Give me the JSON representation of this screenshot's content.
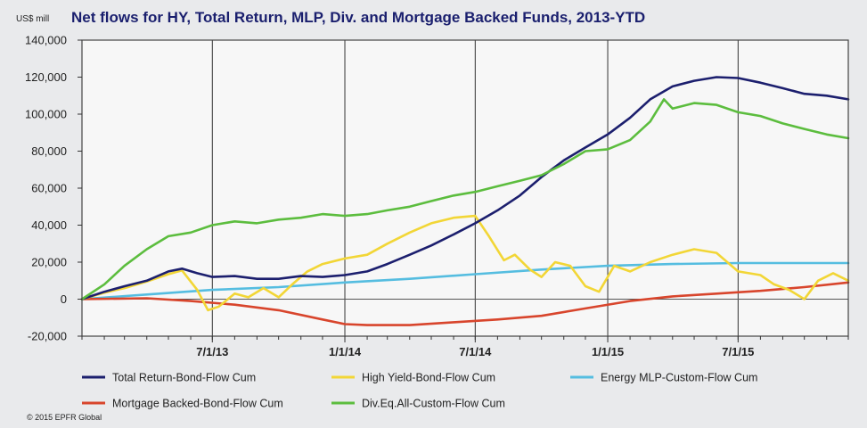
{
  "colors": {
    "background": "#e9eaec",
    "plot_bg": "#f7f7f7",
    "frame": "#444444",
    "title": "#1a1f6e"
  },
  "chart_data": {
    "type": "line",
    "title": "Net flows for HY, Total Return, MLP, Div. and Mortgage Backed Funds, 2013-YTD",
    "unit_label": "US$ mill",
    "copyright": "© 2015 EPFR Global",
    "x_range": [
      "2013-01-01",
      "2015-12-01"
    ],
    "ylim": [
      -20000,
      140000
    ],
    "y_ticks": [
      -20000,
      0,
      20000,
      40000,
      60000,
      80000,
      100000,
      120000,
      140000
    ],
    "y_tick_labels": [
      "-20,000",
      "0",
      "20,000",
      "40,000",
      "60,000",
      "80,000",
      "100,000",
      "120,000",
      "140,000"
    ],
    "x_ticks": [
      "2013-07-01",
      "2014-01-01",
      "2014-07-01",
      "2015-01-01",
      "2015-07-01"
    ],
    "x_tick_labels": [
      "7/1/13",
      "1/1/14",
      "7/1/14",
      "1/1/15",
      "7/1/15"
    ],
    "grid": "vertical",
    "legend_position": "bottom",
    "series": [
      {
        "name": "Total Return-Bond-Flow Cum",
        "color": "#1c1f6e",
        "points": [
          [
            "2013-01-01",
            0
          ],
          [
            "2013-02-01",
            4000
          ],
          [
            "2013-03-01",
            7000
          ],
          [
            "2013-04-01",
            10000
          ],
          [
            "2013-05-01",
            15000
          ],
          [
            "2013-05-20",
            16500
          ],
          [
            "2013-06-10",
            14000
          ],
          [
            "2013-07-01",
            12000
          ],
          [
            "2013-08-01",
            12500
          ],
          [
            "2013-09-01",
            11000
          ],
          [
            "2013-10-01",
            11000
          ],
          [
            "2013-11-01",
            12500
          ],
          [
            "2013-12-01",
            12000
          ],
          [
            "2014-01-01",
            13000
          ],
          [
            "2014-02-01",
            15000
          ],
          [
            "2014-03-01",
            19000
          ],
          [
            "2014-04-01",
            24000
          ],
          [
            "2014-05-01",
            29000
          ],
          [
            "2014-06-01",
            35000
          ],
          [
            "2014-07-01",
            41000
          ],
          [
            "2014-08-01",
            48000
          ],
          [
            "2014-09-01",
            56000
          ],
          [
            "2014-10-01",
            66000
          ],
          [
            "2014-11-01",
            75000
          ],
          [
            "2014-12-01",
            82000
          ],
          [
            "2015-01-01",
            89000
          ],
          [
            "2015-02-01",
            98000
          ],
          [
            "2015-03-01",
            108000
          ],
          [
            "2015-04-01",
            115000
          ],
          [
            "2015-05-01",
            118000
          ],
          [
            "2015-06-01",
            120000
          ],
          [
            "2015-07-01",
            119500
          ],
          [
            "2015-08-01",
            117000
          ],
          [
            "2015-09-01",
            114000
          ],
          [
            "2015-10-01",
            111000
          ],
          [
            "2015-11-01",
            110000
          ],
          [
            "2015-12-01",
            108000
          ]
        ]
      },
      {
        "name": "High Yield-Bond-Flow Cum",
        "color": "#f2d636",
        "points": [
          [
            "2013-01-01",
            0
          ],
          [
            "2013-02-01",
            3500
          ],
          [
            "2013-03-01",
            6000
          ],
          [
            "2013-04-01",
            9500
          ],
          [
            "2013-05-01",
            13500
          ],
          [
            "2013-05-20",
            15500
          ],
          [
            "2013-06-10",
            5000
          ],
          [
            "2013-06-25",
            -6000
          ],
          [
            "2013-07-10",
            -4000
          ],
          [
            "2013-08-01",
            3000
          ],
          [
            "2013-08-20",
            1000
          ],
          [
            "2013-09-10",
            6000
          ],
          [
            "2013-10-01",
            1000
          ],
          [
            "2013-10-20",
            8000
          ],
          [
            "2013-11-10",
            15000
          ],
          [
            "2013-12-01",
            19000
          ],
          [
            "2014-01-01",
            22000
          ],
          [
            "2014-02-01",
            24000
          ],
          [
            "2014-03-01",
            30000
          ],
          [
            "2014-04-01",
            36000
          ],
          [
            "2014-05-01",
            41000
          ],
          [
            "2014-06-01",
            44000
          ],
          [
            "2014-07-01",
            45000
          ],
          [
            "2014-07-20",
            34000
          ],
          [
            "2014-08-10",
            21000
          ],
          [
            "2014-08-25",
            24000
          ],
          [
            "2014-09-15",
            16000
          ],
          [
            "2014-10-01",
            12000
          ],
          [
            "2014-10-20",
            20000
          ],
          [
            "2014-11-10",
            18000
          ],
          [
            "2014-12-01",
            7000
          ],
          [
            "2014-12-20",
            4000
          ],
          [
            "2015-01-10",
            18000
          ],
          [
            "2015-02-01",
            15000
          ],
          [
            "2015-03-01",
            20000
          ],
          [
            "2015-04-01",
            24000
          ],
          [
            "2015-05-01",
            27000
          ],
          [
            "2015-06-01",
            25000
          ],
          [
            "2015-07-01",
            15000
          ],
          [
            "2015-08-01",
            13000
          ],
          [
            "2015-08-20",
            8000
          ],
          [
            "2015-09-10",
            5000
          ],
          [
            "2015-10-01",
            0
          ],
          [
            "2015-10-20",
            10000
          ],
          [
            "2015-11-10",
            14000
          ],
          [
            "2015-12-01",
            10000
          ]
        ]
      },
      {
        "name": "Energy MLP-Custom-Flow Cum",
        "color": "#55bde0",
        "points": [
          [
            "2013-01-01",
            0
          ],
          [
            "2013-04-01",
            2500
          ],
          [
            "2013-07-01",
            5000
          ],
          [
            "2013-10-01",
            6500
          ],
          [
            "2014-01-01",
            9000
          ],
          [
            "2014-04-01",
            11000
          ],
          [
            "2014-07-01",
            13500
          ],
          [
            "2014-10-01",
            16000
          ],
          [
            "2015-01-01",
            18000
          ],
          [
            "2015-04-01",
            19000
          ],
          [
            "2015-07-01",
            19500
          ],
          [
            "2015-12-01",
            19500
          ]
        ]
      },
      {
        "name": "Mortgage Backed-Bond-Flow Cum",
        "color": "#d8452c",
        "points": [
          [
            "2013-01-01",
            0
          ],
          [
            "2013-04-01",
            500
          ],
          [
            "2013-06-01",
            -1000
          ],
          [
            "2013-08-01",
            -3000
          ],
          [
            "2013-10-01",
            -6000
          ],
          [
            "2013-12-01",
            -11000
          ],
          [
            "2014-01-01",
            -13500
          ],
          [
            "2014-02-01",
            -14000
          ],
          [
            "2014-04-01",
            -14000
          ],
          [
            "2014-06-01",
            -12500
          ],
          [
            "2014-08-01",
            -11000
          ],
          [
            "2014-10-01",
            -9000
          ],
          [
            "2014-12-01",
            -5000
          ],
          [
            "2015-02-01",
            -1000
          ],
          [
            "2015-04-01",
            1500
          ],
          [
            "2015-06-01",
            3000
          ],
          [
            "2015-08-01",
            4500
          ],
          [
            "2015-10-01",
            6500
          ],
          [
            "2015-12-01",
            9000
          ]
        ]
      },
      {
        "name": "Div.Eq.All-Custom-Flow Cum",
        "color": "#5cbd3e",
        "points": [
          [
            "2013-01-01",
            0
          ],
          [
            "2013-02-01",
            8000
          ],
          [
            "2013-03-01",
            18000
          ],
          [
            "2013-04-01",
            27000
          ],
          [
            "2013-05-01",
            34000
          ],
          [
            "2013-06-01",
            36000
          ],
          [
            "2013-07-01",
            40000
          ],
          [
            "2013-08-01",
            42000
          ],
          [
            "2013-09-01",
            41000
          ],
          [
            "2013-10-01",
            43000
          ],
          [
            "2013-11-01",
            44000
          ],
          [
            "2013-12-01",
            46000
          ],
          [
            "2014-01-01",
            45000
          ],
          [
            "2014-02-01",
            46000
          ],
          [
            "2014-03-01",
            48000
          ],
          [
            "2014-04-01",
            50000
          ],
          [
            "2014-05-01",
            53000
          ],
          [
            "2014-06-01",
            56000
          ],
          [
            "2014-07-01",
            58000
          ],
          [
            "2014-08-01",
            61000
          ],
          [
            "2014-09-01",
            64000
          ],
          [
            "2014-10-01",
            67000
          ],
          [
            "2014-11-01",
            73000
          ],
          [
            "2014-12-01",
            80000
          ],
          [
            "2015-01-01",
            81000
          ],
          [
            "2015-02-01",
            86000
          ],
          [
            "2015-03-01",
            96000
          ],
          [
            "2015-03-20",
            108000
          ],
          [
            "2015-04-01",
            103000
          ],
          [
            "2015-05-01",
            106000
          ],
          [
            "2015-06-01",
            105000
          ],
          [
            "2015-07-01",
            101000
          ],
          [
            "2015-08-01",
            99000
          ],
          [
            "2015-09-01",
            95000
          ],
          [
            "2015-10-01",
            92000
          ],
          [
            "2015-11-01",
            89000
          ],
          [
            "2015-12-01",
            87000
          ]
        ]
      }
    ]
  }
}
